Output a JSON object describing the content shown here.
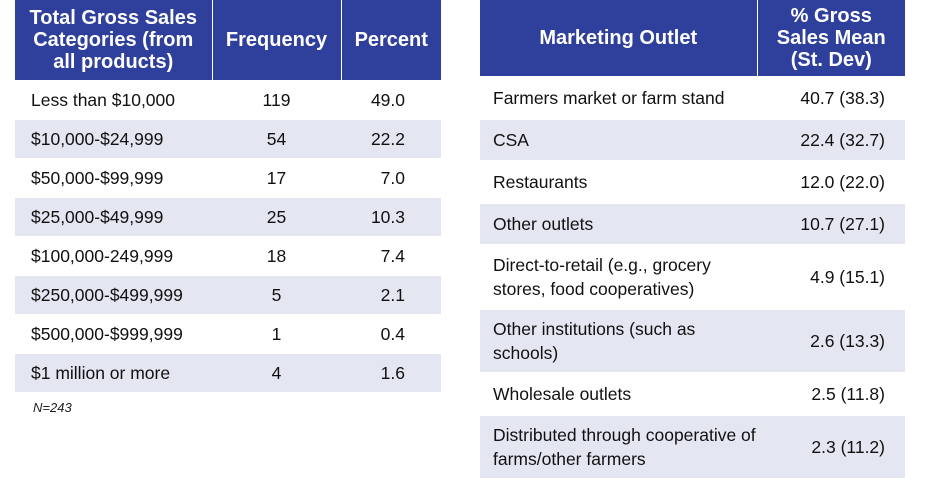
{
  "sales_table": {
    "headers": [
      "Total Gross Sales Categories (from all products)",
      "Frequency",
      "Percent"
    ],
    "rows": [
      {
        "category": "Less than $10,000",
        "frequency": "119",
        "percent": "49.0"
      },
      {
        "category": "$10,000-$24,999",
        "frequency": "54",
        "percent": "22.2"
      },
      {
        "category": "$50,000-$99,999",
        "frequency": "17",
        "percent": "7.0"
      },
      {
        "category": "$25,000-$49,999",
        "frequency": "25",
        "percent": "10.3"
      },
      {
        "category": "$100,000-249,999",
        "frequency": "18",
        "percent": "7.4"
      },
      {
        "category": "$250,000-$499,999",
        "frequency": "5",
        "percent": "2.1"
      },
      {
        "category": "$500,000-$999,999",
        "frequency": "1",
        "percent": "0.4"
      },
      {
        "category": "$1 million or more",
        "frequency": "4",
        "percent": "1.6"
      }
    ],
    "note": "N=243"
  },
  "outlet_table": {
    "headers": [
      "Marketing Outlet",
      "% Gross Sales Mean (St. Dev)"
    ],
    "rows": [
      {
        "outlet": "Farmers market or farm stand",
        "mean": "40.7 (38.3)"
      },
      {
        "outlet": "CSA",
        "mean": "22.4 (32.7)"
      },
      {
        "outlet": "Restaurants",
        "mean": "12.0 (22.0)"
      },
      {
        "outlet": "Other outlets",
        "mean": "10.7 (27.1)"
      },
      {
        "outlet": "Direct-to-retail (e.g., grocery stores, food cooperatives)",
        "mean": "4.9 (15.1)"
      },
      {
        "outlet": "Other institutions (such as schools)",
        "mean": "2.6 (13.3)"
      },
      {
        "outlet": "Wholesale outlets",
        "mean": "2.5 (11.8)"
      },
      {
        "outlet": "Distributed through cooperative of farms/other farmers",
        "mean": "2.3 (11.2)"
      }
    ]
  },
  "colors": {
    "header_bg": "#2f3f9c",
    "row_shade": "#e4e6f2"
  }
}
